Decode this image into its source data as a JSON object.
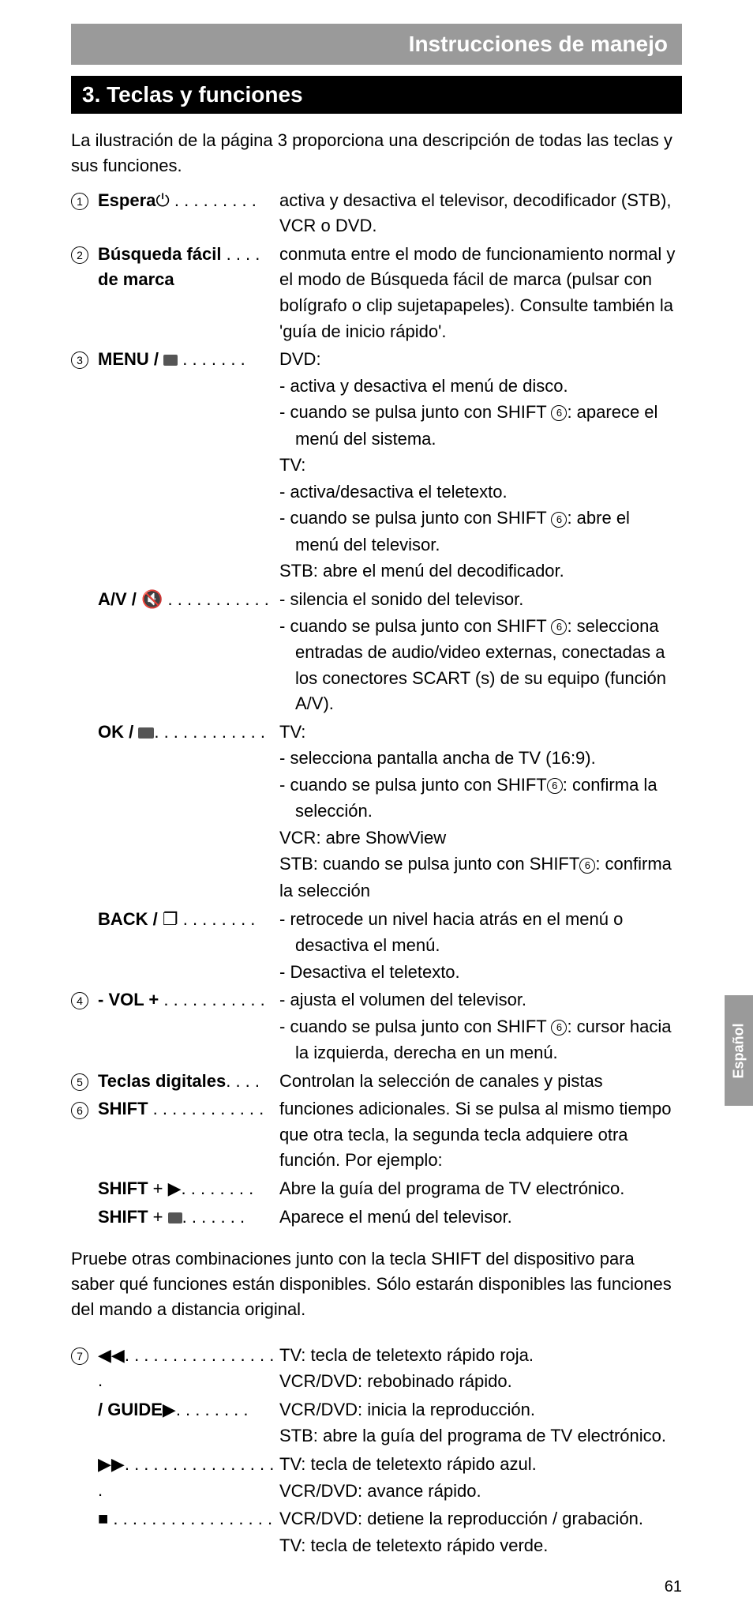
{
  "header": "Instrucciones de manejo",
  "section": "3.  Teclas y funciones",
  "intro": "La ilustración de la página 3 proporciona una descripción de todas las teclas y sus funciones.",
  "items": [
    {
      "num": "1",
      "label_bold": "Espera",
      "label_sym": "⏻",
      "dots": " . . . . . . . . .",
      "desc": [
        "activa y desactiva el televisor, decodificador (STB), VCR o DVD."
      ]
    },
    {
      "num": "2",
      "label_bold": "Búsqueda fácil",
      "label_line2": "de marca",
      "dots": " . . . .",
      "desc": [
        "conmuta entre el modo de funcionamiento normal y el modo de Búsqueda fácil de marca (pulsar con bolígrafo o clip sujetapapeles). Consulte también la 'guía de inicio rápido'."
      ]
    },
    {
      "num": "3",
      "label_bold": "MENU / ",
      "label_icon": "sq",
      "dots": " . . . . . . .",
      "desc": [
        "DVD:",
        "- activa y desactiva el menú de disco.",
        {
          "pre": "- cuando se pulsa junto con SHIFT ",
          "circ": "6",
          "post": ": aparece el"
        },
        {
          "indent": "menú del sistema."
        },
        "TV:",
        "- activa/desactiva el teletexto.",
        {
          "pre": "- cuando se pulsa junto con SHIFT ",
          "circ": "6",
          "post": ": abre el"
        },
        {
          "indent": "menú del televisor."
        },
        "STB: abre el menú del decodificador."
      ]
    },
    {
      "num": "",
      "label_bold": "A/V / ",
      "label_sym": "🔇",
      "dots": " . . . . . . . . . . .",
      "desc": [
        "- silencia el sonido del televisor.",
        {
          "pre": "- cuando se pulsa junto con SHIFT ",
          "circ": "6",
          "post": ": selecciona"
        },
        {
          "indent": "entradas de audio/video externas, conectadas a los conectores SCART (s) de su equipo (función A/V)."
        }
      ]
    },
    {
      "num": "",
      "label_bold": "OK / ",
      "label_icon": "sq2",
      "dots": ". . . . . . . . . . . .",
      "desc": [
        "TV:",
        "- selecciona pantalla ancha de TV (16:9).",
        {
          "pre": "- cuando se pulsa junto con SHIFT",
          "circ": "6",
          "post": ": confirma la"
        },
        {
          "indent": "selección."
        },
        "VCR: abre ShowView",
        {
          "pre": "STB: cuando se pulsa junto con SHIFT",
          "circ": "6",
          "post": ": confirma"
        },
        "la selección"
      ]
    },
    {
      "num": "",
      "label_bold": "BACK / ",
      "label_sym": "❐",
      "dots": " . . . . . . . .",
      "desc": [
        "- retrocede un nivel hacia atrás en el menú o",
        {
          "indent": "desactiva el menú."
        },
        "- Desactiva el teletexto."
      ]
    },
    {
      "num": "4",
      "label_bold": "- VOL +",
      "dots": " . . . . . . . . . . .",
      "desc": [
        "- ajusta el volumen del televisor.",
        {
          "pre": "- cuando se pulsa junto con SHIFT ",
          "circ": "6",
          "post": ": cursor hacia"
        },
        {
          "indent": "la izquierda, derecha en un menú."
        }
      ]
    },
    {
      "num": "5",
      "label_bold": "Teclas digitales",
      "dots": ". . . .",
      "desc": [
        "Controlan la selección de canales y pistas"
      ]
    },
    {
      "num": "6",
      "label_bold": "SHIFT",
      "dots": " . . . . . . . . . . . .",
      "desc": [
        "funciones adicionales. Si se pulsa al mismo tiempo que otra tecla, la segunda tecla adquiere otra función. Por ejemplo:"
      ]
    },
    {
      "num": "",
      "label_bold": "SHIFT",
      "label_plain": " + ▶",
      "dots": ". . . . . . . .",
      "desc": [
        "Abre la guía del programa de TV electrónico."
      ]
    },
    {
      "num": "",
      "label_bold": "SHIFT",
      "label_plain": " + ",
      "label_icon": "sq",
      "dots": ". . . . . . .",
      "desc": [
        "Aparece el menú del televisor."
      ]
    }
  ],
  "para2": "Pruebe otras combinaciones junto con la tecla SHIFT del dispositivo para saber qué funciones están disponibles. Sólo estarán disponibles las funciones del mando a distancia original.",
  "items2": [
    {
      "num": "7",
      "label_sym": "◀◀",
      "dots": ". . . . . . . . . . . . . . . . .",
      "desc": [
        "TV: tecla de teletexto rápido roja.",
        "VCR/DVD: rebobinado rápido."
      ]
    },
    {
      "num": "",
      "label_sym": "▶",
      "label_bold": " / GUIDE",
      "dots": ". . . . . . . .",
      "desc": [
        "VCR/DVD: inicia la reproducción.",
        "STB: abre la guía del programa de TV electrónico."
      ]
    },
    {
      "num": "",
      "label_sym": "▶▶",
      "dots": ". . . . . . . . . . . . . . . . .",
      "desc": [
        "TV: tecla de teletexto rápido azul.",
        "VCR/DVD: avance rápido."
      ]
    },
    {
      "num": "",
      "label_sym": "■",
      "dots": " . . . . . . . . . . . . . . . . .",
      "desc": [
        "VCR/DVD: detiene la reproducción / grabación.",
        "TV: tecla de teletexto rápido verde."
      ]
    }
  ],
  "side_tab": "Español",
  "page_num": "61"
}
